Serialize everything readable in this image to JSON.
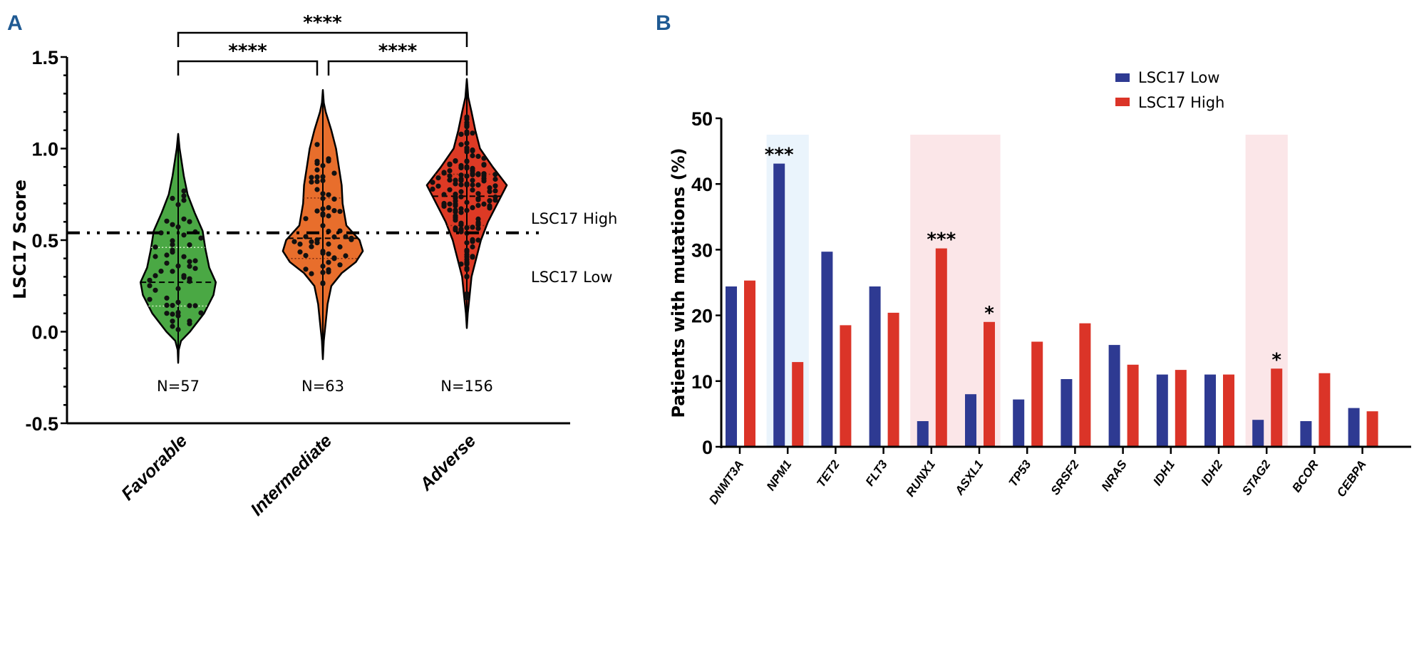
{
  "chart_data": [
    {
      "panel": "A",
      "type": "violin",
      "title": "",
      "ylabel": "LSC17 Score",
      "xlabel": "",
      "ylim": [
        -0.5,
        1.5
      ],
      "yticks": [
        -0.5,
        0.0,
        0.5,
        1.0,
        1.5
      ],
      "ytick_labels": [
        "-0.5",
        "0.0",
        "0.5",
        "1.0",
        "1.5"
      ],
      "categories": [
        "Favorable",
        "Intermediate",
        "Adverse"
      ],
      "colors": [
        "#4aa844",
        "#e86e2c",
        "#dd3a25"
      ],
      "n_labels": [
        "N=57",
        "N=63",
        "N=156"
      ],
      "n": [
        57,
        63,
        156
      ],
      "medians": [
        0.27,
        0.51,
        0.74
      ],
      "quartiles": [
        [
          0.14,
          0.46
        ],
        [
          0.4,
          0.73
        ],
        [
          0.58,
          0.86
        ]
      ],
      "range": [
        [
          -0.17,
          1.08
        ],
        [
          -0.15,
          1.32
        ],
        [
          0.02,
          1.38
        ]
      ],
      "profiles": [
        [
          [
            -0.17,
            0
          ],
          [
            -0.1,
            0.01
          ],
          [
            -0.05,
            0.06
          ],
          [
            0.0,
            0.25
          ],
          [
            0.1,
            0.55
          ],
          [
            0.2,
            0.75
          ],
          [
            0.27,
            0.8
          ],
          [
            0.35,
            0.66
          ],
          [
            0.45,
            0.58
          ],
          [
            0.55,
            0.52
          ],
          [
            0.65,
            0.35
          ],
          [
            0.75,
            0.2
          ],
          [
            0.85,
            0.12
          ],
          [
            0.95,
            0.06
          ],
          [
            1.0,
            0.03
          ],
          [
            1.08,
            0
          ]
        ],
        [
          [
            -0.15,
            0
          ],
          [
            -0.05,
            0.02
          ],
          [
            0.05,
            0.06
          ],
          [
            0.15,
            0.1
          ],
          [
            0.25,
            0.18
          ],
          [
            0.32,
            0.4
          ],
          [
            0.38,
            0.7
          ],
          [
            0.44,
            0.85
          ],
          [
            0.5,
            0.78
          ],
          [
            0.58,
            0.5
          ],
          [
            0.7,
            0.42
          ],
          [
            0.8,
            0.4
          ],
          [
            0.9,
            0.34
          ],
          [
            1.0,
            0.28
          ],
          [
            1.1,
            0.18
          ],
          [
            1.2,
            0.06
          ],
          [
            1.25,
            0.02
          ],
          [
            1.32,
            0
          ]
        ],
        [
          [
            0.02,
            0
          ],
          [
            0.1,
            0.02
          ],
          [
            0.2,
            0.06
          ],
          [
            0.3,
            0.1
          ],
          [
            0.4,
            0.2
          ],
          [
            0.5,
            0.3
          ],
          [
            0.6,
            0.45
          ],
          [
            0.7,
            0.65
          ],
          [
            0.8,
            0.85
          ],
          [
            0.9,
            0.55
          ],
          [
            1.0,
            0.28
          ],
          [
            1.1,
            0.18
          ],
          [
            1.2,
            0.1
          ],
          [
            1.28,
            0.03
          ],
          [
            1.38,
            0
          ]
        ]
      ],
      "threshold": {
        "value": 0.54,
        "label_above": "LSC17 High",
        "label_below": "LSC17 Low"
      },
      "significance": [
        {
          "from": "Favorable",
          "to": "Adverse",
          "label": "****"
        },
        {
          "from": "Favorable",
          "to": "Intermediate",
          "label": "****"
        },
        {
          "from": "Intermediate",
          "to": "Adverse",
          "label": "****"
        }
      ]
    },
    {
      "panel": "B",
      "type": "bar",
      "title": "",
      "ylabel": "Patients with mutations (%)",
      "xlabel": "",
      "ylim": [
        0,
        50
      ],
      "yticks": [
        0,
        10,
        20,
        30,
        40,
        50
      ],
      "ytick_labels": [
        "0",
        "10",
        "20",
        "30",
        "40",
        "50"
      ],
      "categories": [
        "DNMT3A",
        "NPM1",
        "TET2",
        "FLT3",
        "RUNX1",
        "ASXL1",
        "TP53",
        "SRSF2",
        "NRAS",
        "IDH1",
        "IDH2",
        "STAG2",
        "BCOR",
        "CEBPA"
      ],
      "series": [
        {
          "name": "LSC17 Low",
          "color": "#2e3a92",
          "values": [
            24.4,
            43.1,
            29.7,
            24.4,
            3.9,
            8.0,
            7.2,
            10.3,
            15.5,
            11.0,
            11.0,
            4.1,
            3.9,
            5.9
          ]
        },
        {
          "name": "LSC17 High",
          "color": "#db3428",
          "values": [
            25.3,
            12.9,
            18.5,
            20.4,
            30.2,
            19.0,
            16.0,
            18.8,
            12.5,
            11.7,
            11.0,
            11.9,
            11.2,
            5.4
          ]
        }
      ],
      "legend": {
        "position": "top-right",
        "entries": [
          "LSC17 Low",
          "LSC17 High"
        ]
      },
      "highlights": [
        {
          "category": "NPM1",
          "color": "#eaf4fc",
          "enriched_in": "LSC17 Low"
        },
        {
          "categories": [
            "RUNX1",
            "ASXL1"
          ],
          "color": "#fbe6e8",
          "enriched_in": "LSC17 High"
        },
        {
          "category": "STAG2",
          "color": "#fbe6e8",
          "enriched_in": "LSC17 High"
        }
      ],
      "annotations": [
        {
          "category": "NPM1",
          "series": "LSC17 Low",
          "label": "***"
        },
        {
          "category": "RUNX1",
          "series": "LSC17 High",
          "label": "***"
        },
        {
          "category": "ASXL1",
          "series": "LSC17 High",
          "label": "*"
        },
        {
          "category": "STAG2",
          "series": "LSC17 High",
          "label": "*"
        }
      ]
    }
  ],
  "panels": {
    "a_letter": "A",
    "b_letter": "B"
  }
}
